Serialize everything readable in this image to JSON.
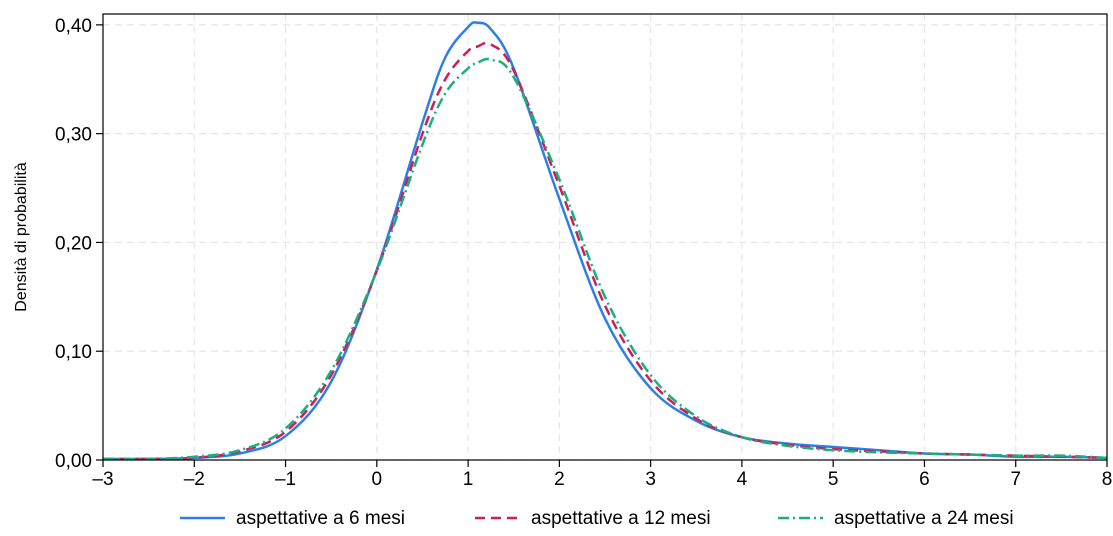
{
  "chart_data": {
    "type": "line",
    "title": "",
    "xlabel": "",
    "ylabel": "Densità di probabilità",
    "xlim": [
      -3,
      8
    ],
    "ylim": [
      0,
      0.41
    ],
    "xticks": [
      -3,
      -2,
      -1,
      0,
      1,
      2,
      3,
      4,
      5,
      6,
      7,
      8
    ],
    "xtick_labels": [
      "–3",
      "–2",
      "–1",
      "0",
      "1",
      "2",
      "3",
      "4",
      "5",
      "6",
      "7",
      "8"
    ],
    "yticks": [
      0,
      0.1,
      0.2,
      0.3,
      0.4
    ],
    "ytick_labels": [
      "0,00",
      "0,10",
      "0,20",
      "0,30",
      "0,40"
    ],
    "grid": true,
    "legend_position": "bottom",
    "x": [
      -3,
      -2.5,
      -2,
      -1.5,
      -1,
      -0.5,
      0,
      0.5,
      0.75,
      1,
      1.1,
      1.25,
      1.5,
      2,
      2.5,
      3,
      3.5,
      4,
      4.5,
      5,
      5.5,
      6,
      6.5,
      7,
      7.5,
      8
    ],
    "series": [
      {
        "name": "aspettative a 6 mesi",
        "color": "#2f7ee8",
        "dash": "solid",
        "values": [
          0.001,
          0.001,
          0.002,
          0.006,
          0.022,
          0.072,
          0.175,
          0.31,
          0.37,
          0.398,
          0.402,
          0.396,
          0.36,
          0.24,
          0.13,
          0.066,
          0.036,
          0.021,
          0.015,
          0.012,
          0.009,
          0.006,
          0.005,
          0.003,
          0.003,
          0.002
        ]
      },
      {
        "name": "aspettative a 12 mesi",
        "color": "#cc1f5a",
        "dash": "dashed",
        "values": [
          0.001,
          0.001,
          0.002,
          0.008,
          0.026,
          0.078,
          0.174,
          0.3,
          0.35,
          0.376,
          0.38,
          0.382,
          0.358,
          0.252,
          0.142,
          0.073,
          0.038,
          0.021,
          0.014,
          0.01,
          0.008,
          0.006,
          0.005,
          0.004,
          0.003,
          0.002
        ]
      },
      {
        "name": "aspettative a 24 mesi",
        "color": "#1ab07c",
        "dash": "dashdot",
        "values": [
          0.001,
          0.001,
          0.003,
          0.009,
          0.029,
          0.082,
          0.174,
          0.29,
          0.337,
          0.36,
          0.365,
          0.368,
          0.352,
          0.258,
          0.15,
          0.078,
          0.04,
          0.021,
          0.013,
          0.009,
          0.007,
          0.006,
          0.005,
          0.004,
          0.004,
          0.002
        ]
      }
    ]
  }
}
